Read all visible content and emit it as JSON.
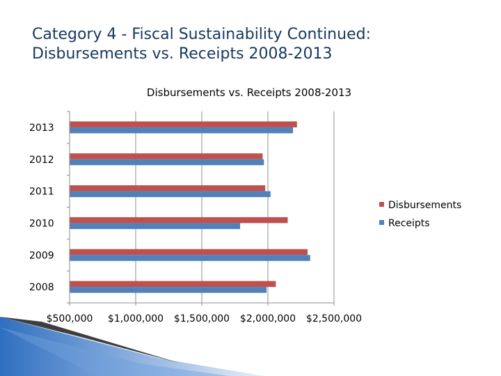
{
  "slide": {
    "title_line1": "Category 4 - Fiscal Sustainability Continued:",
    "title_line2": "Disbursements vs. Receipts 2008-2013"
  },
  "chart_data": {
    "type": "bar",
    "orientation": "horizontal",
    "title": "Disbursements vs. Receipts 2008-2013",
    "categories": [
      "2008",
      "2009",
      "2010",
      "2011",
      "2012",
      "2013"
    ],
    "series": [
      {
        "name": "Disbursements",
        "color": "#c0504d",
        "values": [
          2060000,
          2300000,
          2150000,
          1980000,
          1960000,
          2220000
        ]
      },
      {
        "name": "Receipts",
        "color": "#4f81bd",
        "values": [
          1990000,
          2320000,
          1790000,
          2020000,
          1970000,
          2190000
        ]
      }
    ],
    "xlim": [
      500000,
      2500000
    ],
    "xticks": [
      500000,
      1000000,
      1500000,
      2000000,
      2500000
    ],
    "xtick_labels": [
      "$500,000",
      "$1,000,000",
      "$1,500,000",
      "$2,000,000",
      "$2,500,000"
    ],
    "grid": true,
    "legend": "right"
  }
}
